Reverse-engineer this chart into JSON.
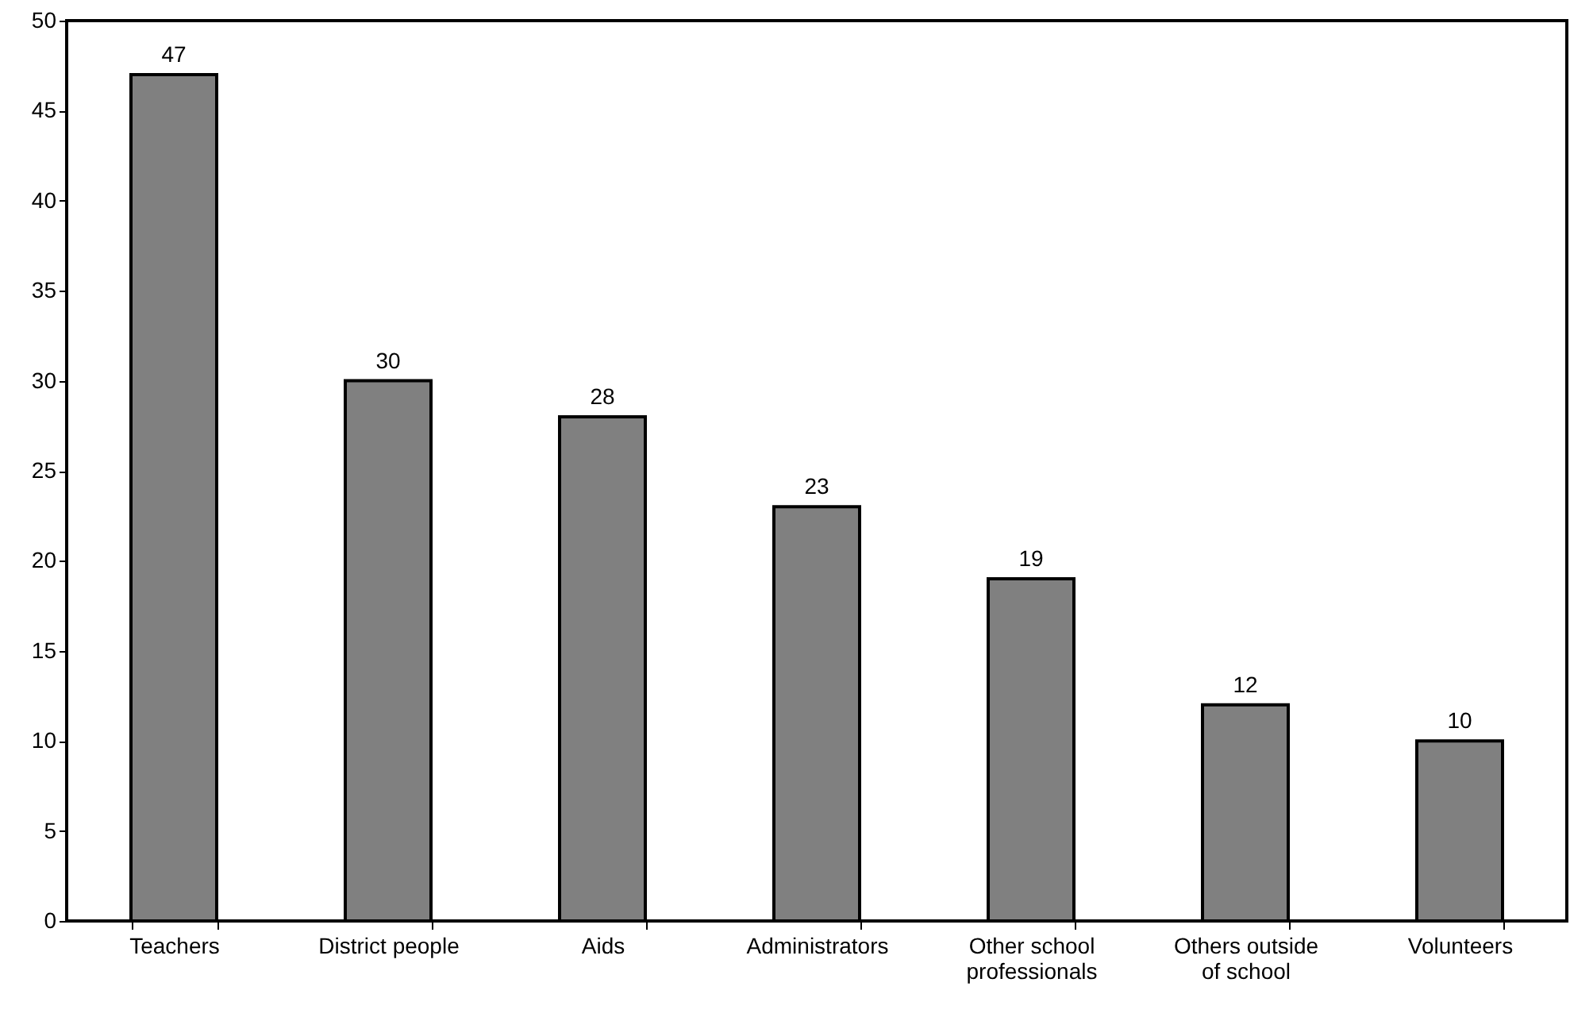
{
  "chart_data": {
    "type": "bar",
    "categories": [
      "Teachers",
      "District people",
      "Aids",
      "Administrators",
      "Other school professionals",
      "Others outside of school",
      "Volunteers"
    ],
    "values": [
      47,
      30,
      28,
      23,
      19,
      12,
      10
    ],
    "color": "#808080",
    "ylim": [
      0,
      50
    ],
    "yticks": [
      0,
      5,
      10,
      15,
      20,
      25,
      30,
      35,
      40,
      45,
      50
    ],
    "grid": false,
    "data_labels": true
  }
}
